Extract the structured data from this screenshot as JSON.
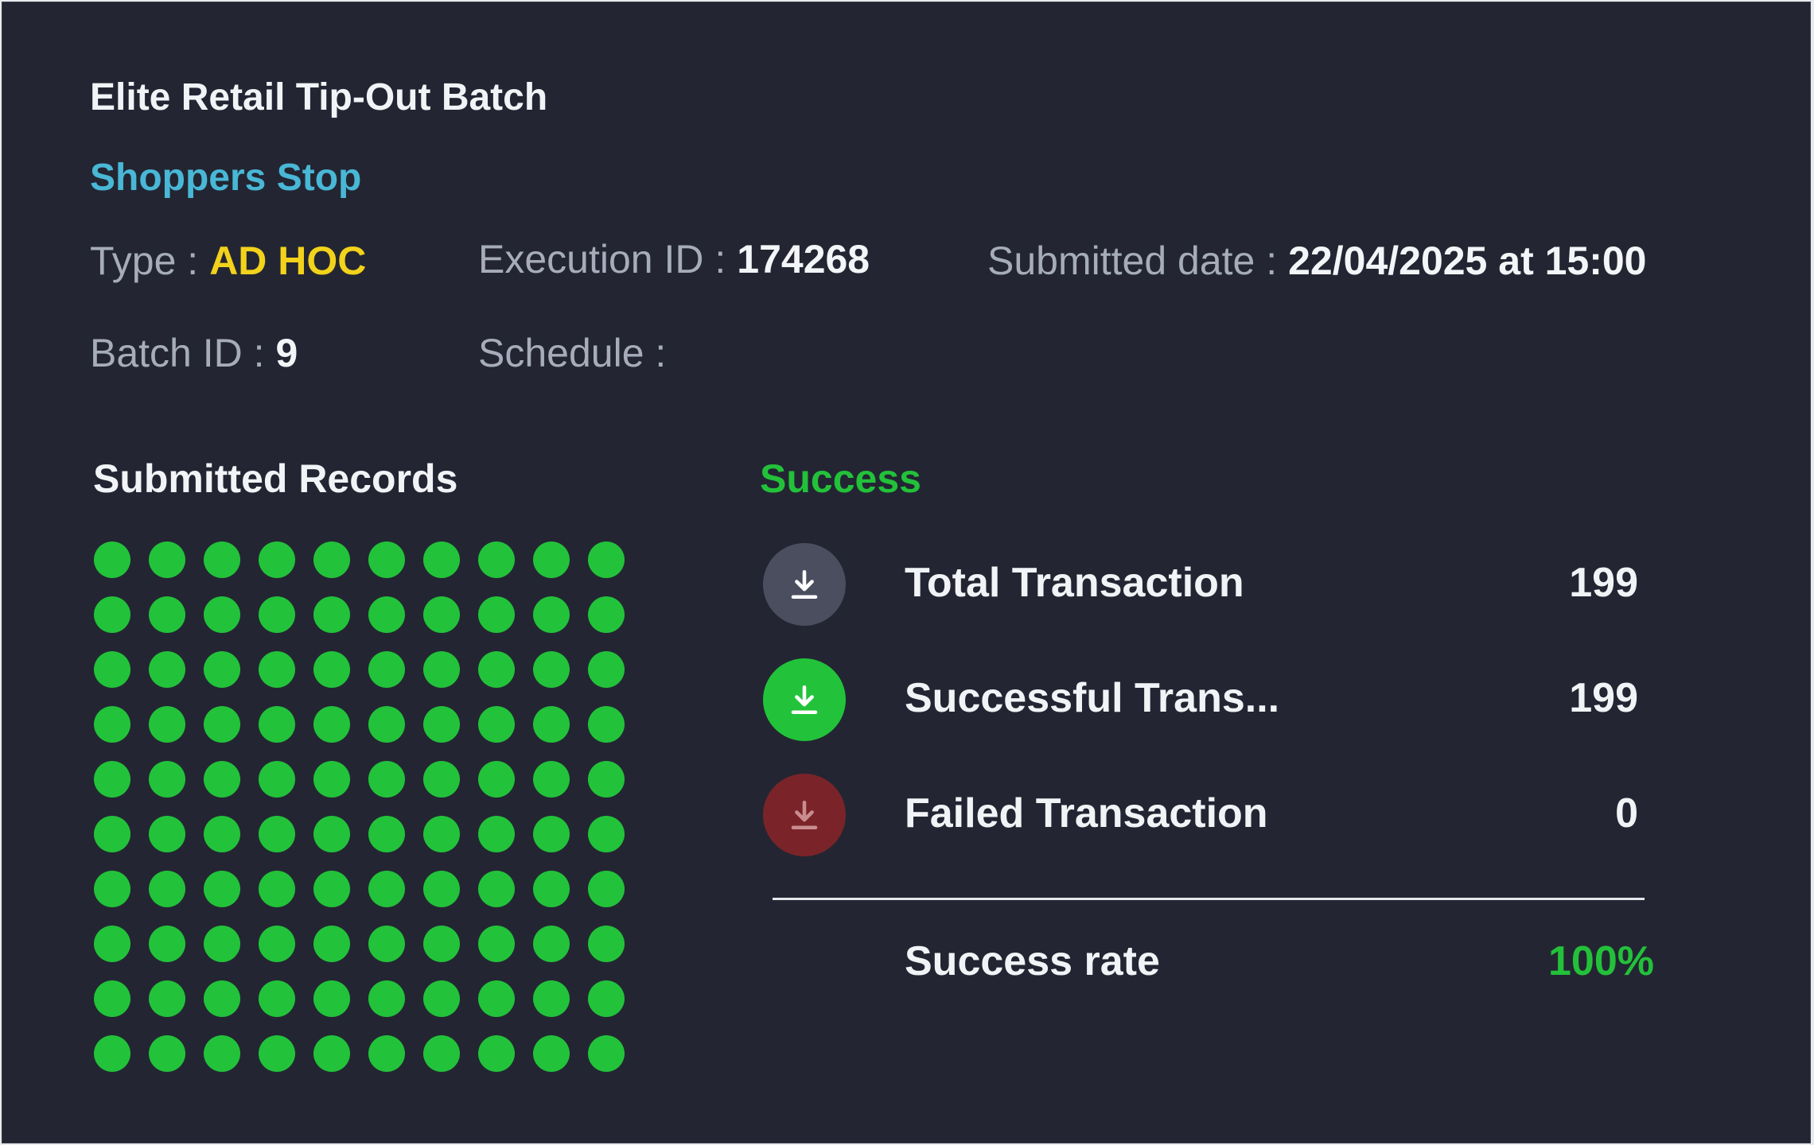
{
  "batch": {
    "title": "Elite Retail Tip-Out Batch",
    "merchant": "Shoppers Stop"
  },
  "meta": {
    "type_label": "Type :",
    "type_value": "AD HOC",
    "execution_label": "Execution ID :",
    "execution_value": "174268",
    "submitted_label": "Submitted date :",
    "submitted_value": "22/04/2025 at 15:00",
    "batch_label": "Batch ID :",
    "batch_value": "9",
    "schedule_label": "Schedule :",
    "schedule_value": ""
  },
  "records": {
    "title": "Submitted Records",
    "count_shown": 100,
    "successful": 100,
    "dot_color": "#22c33a"
  },
  "summary": {
    "status": "Success",
    "status_color": "#23c13a",
    "rows": [
      {
        "label": "Total Transaction",
        "value": "199",
        "icon": "download-icon",
        "icon_bg": "#4a4e5f",
        "icon_fg": "#ffffff"
      },
      {
        "label": "Successful Trans...",
        "value": "199",
        "icon": "download-icon",
        "icon_bg": "#22c33a",
        "icon_fg": "#ffffff"
      },
      {
        "label": "Failed Transaction",
        "value": "0",
        "icon": "download-icon",
        "icon_bg": "#7a2429",
        "icon_fg": "#c98c8f"
      }
    ],
    "rate_label": "Success rate",
    "rate_value": "100%"
  }
}
